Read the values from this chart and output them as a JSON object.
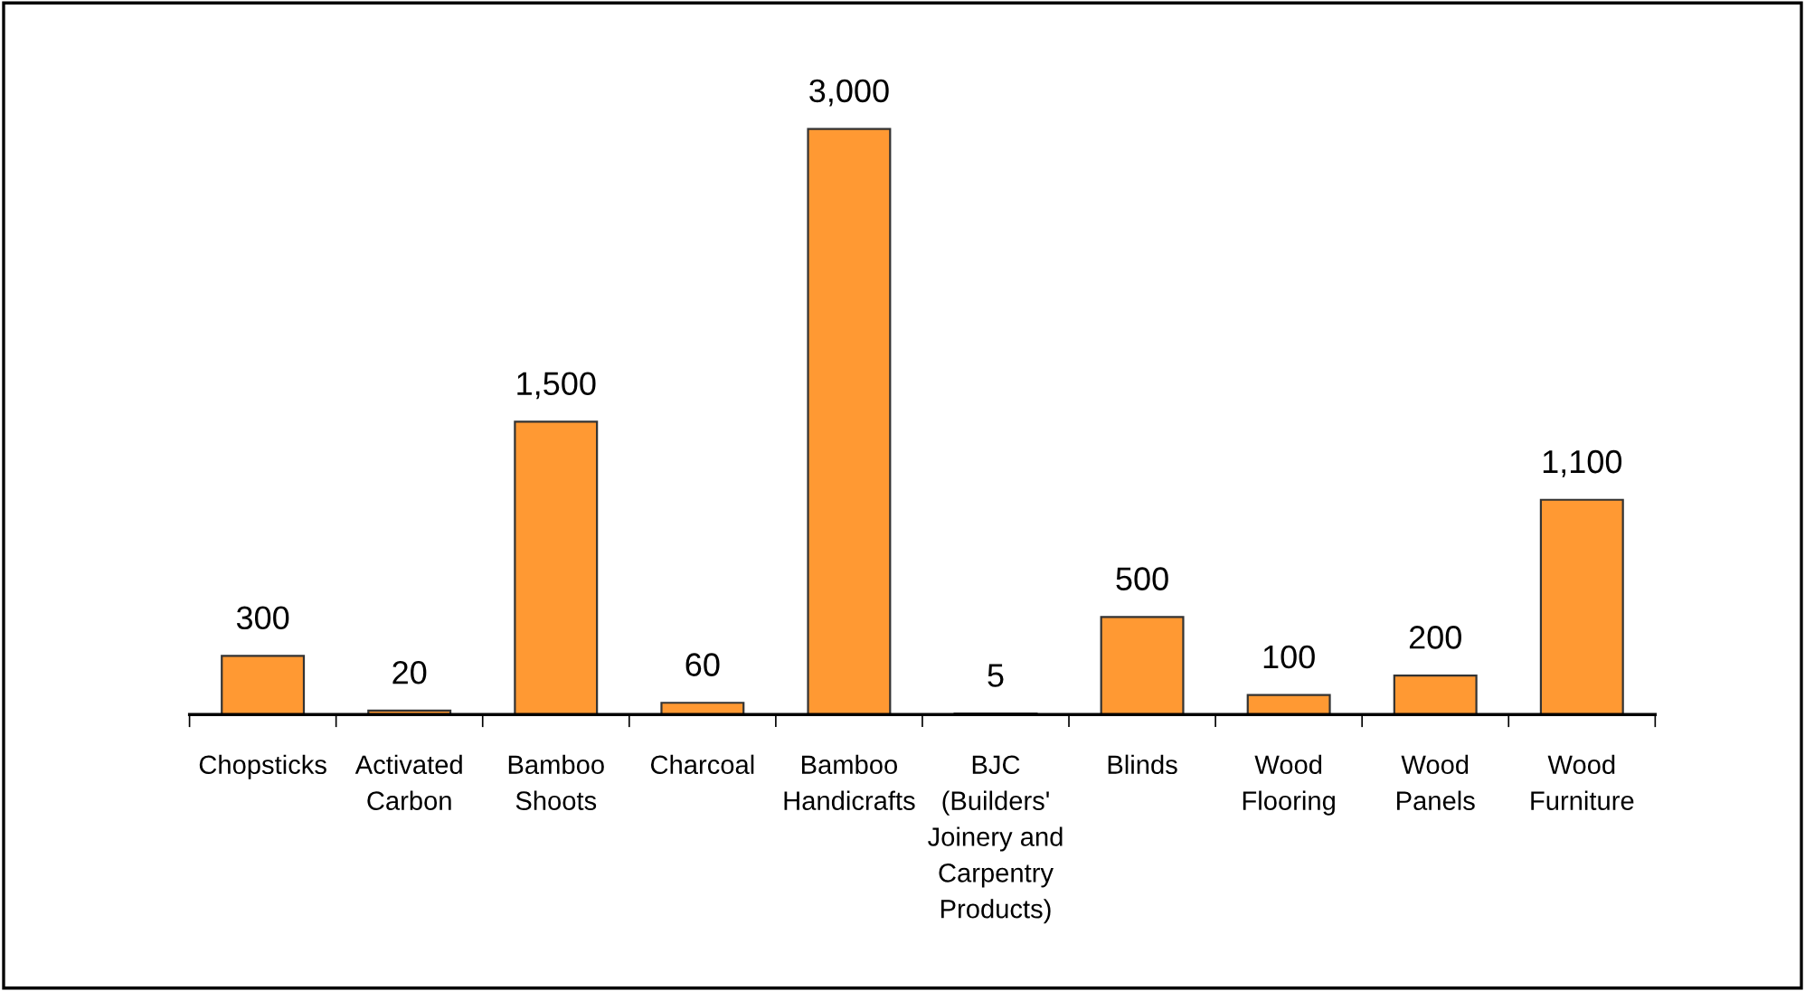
{
  "chart_data": {
    "type": "bar",
    "categories": [
      "Chopsticks",
      "Activated\nCarbon",
      "Bamboo\nShoots",
      "Charcoal",
      "Bamboo\nHandicrafts",
      "BJC\n(Builders'\nJoinery and\nCarpentry\nProducts)",
      "Blinds",
      "Wood\nFlooring",
      "Wood\nPanels",
      "Wood\nFurniture"
    ],
    "values": [
      300,
      20,
      1500,
      60,
      3000,
      5,
      500,
      100,
      200,
      1100
    ],
    "value_labels": [
      "300",
      "20",
      "1,500",
      "60",
      "3,000",
      "5",
      "500",
      "100",
      "200",
      "1,100"
    ],
    "color": "#ff9933",
    "tick_labels": "x",
    "grid": false,
    "legend": false
  }
}
